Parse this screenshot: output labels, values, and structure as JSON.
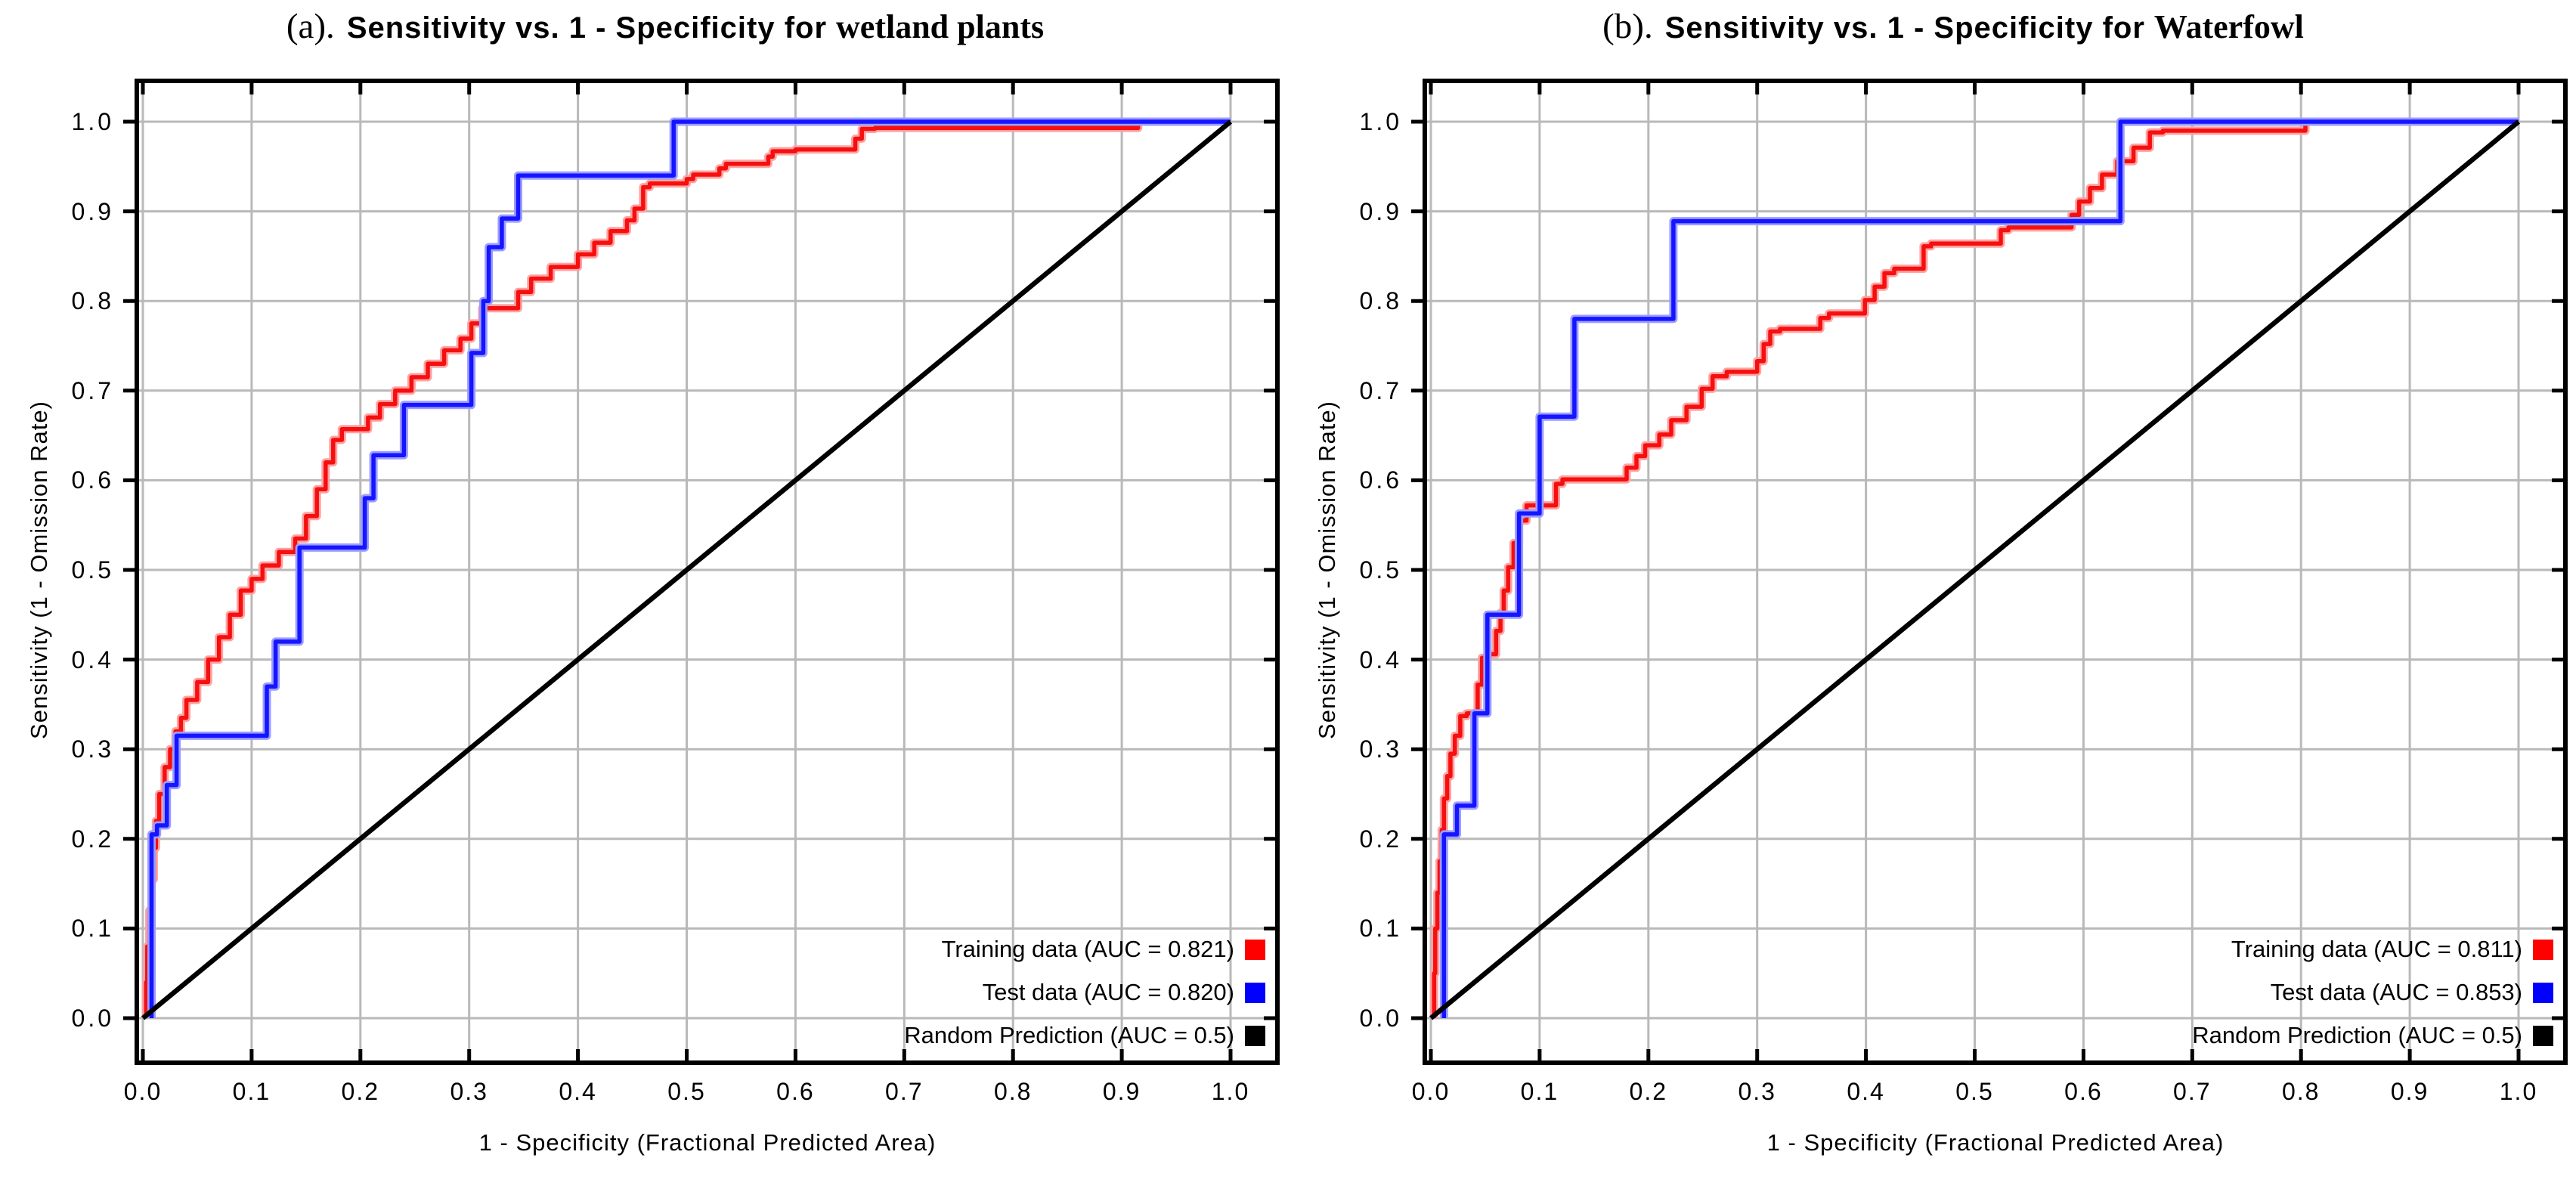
{
  "chart_data": [
    {
      "id": "a",
      "type": "line",
      "title_prefix": "(a).",
      "title_main": "Sensitivity vs. 1 - Specificity for",
      "title_species": "wetland plants",
      "xlabel": "1 - Specificity  (Fractional Predicted Area)",
      "ylabel": "Sensitivity  (1 - Omission Rate)",
      "xlim": [
        0.0,
        1.0
      ],
      "ylim": [
        0.0,
        1.0
      ],
      "grid": true,
      "legend_position": "bottom-right",
      "xticks": [
        "0.0",
        "0.1",
        "0.2",
        "0.3",
        "0.4",
        "0.5",
        "0.6",
        "0.7",
        "0.8",
        "0.9",
        "1.0"
      ],
      "yticks": [
        "0.0",
        "0.1",
        "0.2",
        "0.3",
        "0.4",
        "0.5",
        "0.6",
        "0.7",
        "0.8",
        "0.9",
        "1.0"
      ],
      "legend": [
        {
          "label": "Training data (AUC = 0.821)",
          "color": "#ff0000"
        },
        {
          "label": "Test data (AUC = 0.820)",
          "color": "#0000ff"
        },
        {
          "label": "Random Prediction (AUC = 0.5)",
          "color": "#000000"
        }
      ],
      "series": [
        {
          "name": "Training data",
          "auc": 0.821,
          "type": "step",
          "color": "#f50f0f",
          "halo": "#ffa2a2",
          "points": [
            [
              0.003,
              0
            ],
            [
              0.004,
              0.04
            ],
            [
              0.006,
              0.08
            ],
            [
              0.008,
              0.12
            ],
            [
              0.01,
              0.155
            ],
            [
              0.012,
              0.19
            ],
            [
              0.015,
              0.22
            ],
            [
              0.02,
              0.25
            ],
            [
              0.025,
              0.28
            ],
            [
              0.03,
              0.3
            ],
            [
              0.035,
              0.32
            ],
            [
              0.04,
              0.335
            ],
            [
              0.05,
              0.355
            ],
            [
              0.06,
              0.375
            ],
            [
              0.07,
              0.4
            ],
            [
              0.08,
              0.425
            ],
            [
              0.09,
              0.45
            ],
            [
              0.1,
              0.477
            ],
            [
              0.11,
              0.49
            ],
            [
              0.125,
              0.505
            ],
            [
              0.14,
              0.52
            ],
            [
              0.15,
              0.535
            ],
            [
              0.16,
              0.56
            ],
            [
              0.168,
              0.59
            ],
            [
              0.175,
              0.62
            ],
            [
              0.183,
              0.645
            ],
            [
              0.207,
              0.657
            ],
            [
              0.218,
              0.67
            ],
            [
              0.232,
              0.685
            ],
            [
              0.247,
              0.7
            ],
            [
              0.262,
              0.715
            ],
            [
              0.277,
              0.73
            ],
            [
              0.292,
              0.745
            ],
            [
              0.302,
              0.758
            ],
            [
              0.312,
              0.775
            ],
            [
              0.345,
              0.792
            ],
            [
              0.357,
              0.81
            ],
            [
              0.375,
              0.825
            ],
            [
              0.4,
              0.838
            ],
            [
              0.415,
              0.852
            ],
            [
              0.43,
              0.865
            ],
            [
              0.445,
              0.878
            ],
            [
              0.452,
              0.89
            ],
            [
              0.46,
              0.903
            ],
            [
              0.466,
              0.927
            ],
            [
              0.5,
              0.931
            ],
            [
              0.506,
              0.936
            ],
            [
              0.53,
              0.941
            ],
            [
              0.536,
              0.948
            ],
            [
              0.575,
              0.953
            ],
            [
              0.579,
              0.961
            ],
            [
              0.6,
              0.967
            ],
            [
              0.655,
              0.969
            ],
            [
              0.661,
              0.981
            ],
            [
              0.673,
              0.992
            ],
            [
              0.915,
              0.993
            ],
            [
              0.925,
              1.0
            ],
            [
              1.0,
              1.0
            ]
          ]
        },
        {
          "name": "Test data",
          "auc": 0.82,
          "type": "step",
          "color": "#1515ff",
          "halo": "#9c9cff",
          "points": [
            [
              0.008,
              0
            ],
            [
              0.013,
              0.205
            ],
            [
              0.022,
              0.215
            ],
            [
              0.031,
              0.26
            ],
            [
              0.114,
              0.315
            ],
            [
              0.122,
              0.37
            ],
            [
              0.144,
              0.42
            ],
            [
              0.204,
              0.525
            ],
            [
              0.212,
              0.58
            ],
            [
              0.24,
              0.628
            ],
            [
              0.302,
              0.684
            ],
            [
              0.313,
              0.742
            ],
            [
              0.318,
              0.8
            ],
            [
              0.33,
              0.86
            ],
            [
              0.345,
              0.892
            ],
            [
              0.488,
              0.94
            ],
            [
              1.0,
              1.0
            ]
          ]
        },
        {
          "name": "Random Prediction",
          "auc": 0.5,
          "type": "line",
          "color": "#000000",
          "halo": "#9a9a9a",
          "points": [
            [
              0,
              0
            ],
            [
              1,
              1
            ]
          ]
        }
      ]
    },
    {
      "id": "b",
      "type": "line",
      "title_prefix": "(b).",
      "title_main": "Sensitivity vs. 1 - Specificity for",
      "title_species": "Waterfowl",
      "xlabel": "1 - Specificity  (Fractional Predicted Area)",
      "ylabel": "Sensitivity  (1 - Omission Rate)",
      "xlim": [
        0.0,
        1.0
      ],
      "ylim": [
        0.0,
        1.0
      ],
      "grid": true,
      "legend_position": "bottom-right",
      "xticks": [
        "0.0",
        "0.1",
        "0.2",
        "0.3",
        "0.4",
        "0.5",
        "0.6",
        "0.7",
        "0.8",
        "0.9",
        "1.0"
      ],
      "yticks": [
        "0.0",
        "0.1",
        "0.2",
        "0.3",
        "0.4",
        "0.5",
        "0.6",
        "0.7",
        "0.8",
        "0.9",
        "1.0"
      ],
      "legend": [
        {
          "label": "Training data (AUC = 0.811)",
          "color": "#ff0000"
        },
        {
          "label": "Test data (AUC = 0.853)",
          "color": "#0000ff"
        },
        {
          "label": "Random Prediction (AUC = 0.5)",
          "color": "#000000"
        }
      ],
      "series": [
        {
          "name": "Training data",
          "auc": 0.811,
          "type": "step",
          "color": "#f50f0f",
          "halo": "#ffa2a2",
          "points": [
            [
              0.003,
              0
            ],
            [
              0.004,
              0.05
            ],
            [
              0.006,
              0.1
            ],
            [
              0.008,
              0.14
            ],
            [
              0.01,
              0.175
            ],
            [
              0.012,
              0.21
            ],
            [
              0.015,
              0.245
            ],
            [
              0.018,
              0.27
            ],
            [
              0.022,
              0.295
            ],
            [
              0.027,
              0.315
            ],
            [
              0.033,
              0.337
            ],
            [
              0.043,
              0.34
            ],
            [
              0.047,
              0.372
            ],
            [
              0.053,
              0.402
            ],
            [
              0.06,
              0.406
            ],
            [
              0.064,
              0.432
            ],
            [
              0.067,
              0.452
            ],
            [
              0.071,
              0.477
            ],
            [
              0.076,
              0.503
            ],
            [
              0.081,
              0.53
            ],
            [
              0.088,
              0.555
            ],
            [
              0.115,
              0.572
            ],
            [
              0.121,
              0.596
            ],
            [
              0.18,
              0.601
            ],
            [
              0.189,
              0.614
            ],
            [
              0.197,
              0.627
            ],
            [
              0.21,
              0.639
            ],
            [
              0.221,
              0.651
            ],
            [
              0.235,
              0.667
            ],
            [
              0.249,
              0.682
            ],
            [
              0.259,
              0.702
            ],
            [
              0.272,
              0.716
            ],
            [
              0.3,
              0.721
            ],
            [
              0.306,
              0.733
            ],
            [
              0.312,
              0.752
            ],
            [
              0.321,
              0.766
            ],
            [
              0.358,
              0.769
            ],
            [
              0.366,
              0.781
            ],
            [
              0.399,
              0.786
            ],
            [
              0.408,
              0.801
            ],
            [
              0.417,
              0.816
            ],
            [
              0.426,
              0.831
            ],
            [
              0.453,
              0.836
            ],
            [
              0.46,
              0.861
            ],
            [
              0.524,
              0.864
            ],
            [
              0.531,
              0.879
            ],
            [
              0.589,
              0.882
            ],
            [
              0.596,
              0.896
            ],
            [
              0.606,
              0.911
            ],
            [
              0.617,
              0.926
            ],
            [
              0.631,
              0.941
            ],
            [
              0.646,
              0.956
            ],
            [
              0.661,
              0.971
            ],
            [
              0.673,
              0.988
            ],
            [
              0.804,
              0.99
            ],
            [
              0.813,
              1.0
            ],
            [
              1.0,
              1.0
            ]
          ]
        },
        {
          "name": "Test data",
          "auc": 0.853,
          "type": "step",
          "color": "#1515ff",
          "halo": "#9c9cff",
          "points": [
            [
              0.012,
              0
            ],
            [
              0.024,
              0.205
            ],
            [
              0.04,
              0.237
            ],
            [
              0.052,
              0.34
            ],
            [
              0.081,
              0.45
            ],
            [
              0.1,
              0.563
            ],
            [
              0.132,
              0.671
            ],
            [
              0.223,
              0.78
            ],
            [
              0.634,
              0.889
            ],
            [
              1.0,
              1.0
            ]
          ]
        },
        {
          "name": "Random Prediction",
          "auc": 0.5,
          "type": "line",
          "color": "#000000",
          "halo": "#9a9a9a",
          "points": [
            [
              0,
              0
            ],
            [
              1,
              1
            ]
          ]
        }
      ]
    }
  ],
  "style": {
    "grid_color": "#b9b9b9",
    "frame_color": "#000000",
    "background": "#ffffff"
  }
}
